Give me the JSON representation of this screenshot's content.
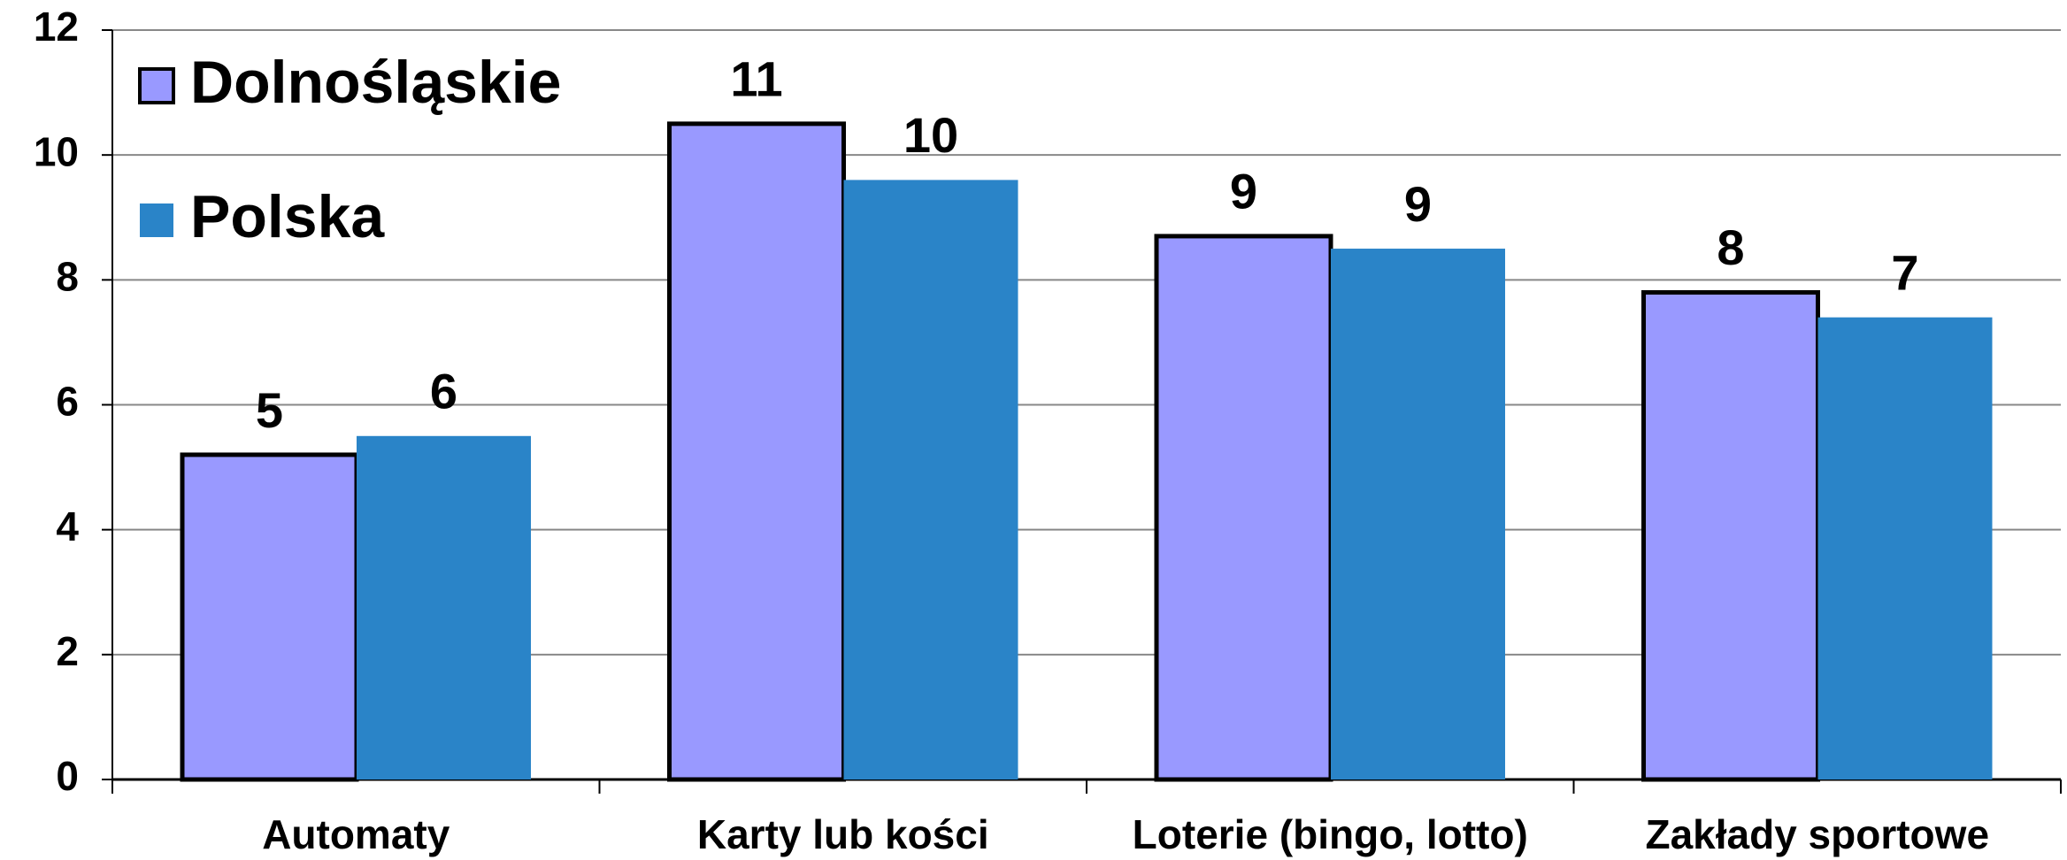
{
  "chart_data": {
    "type": "bar",
    "categories": [
      "Automaty",
      "Karty lub kości",
      "Loterie (bingo, lotto)",
      "Zakłady sportowe"
    ],
    "series": [
      {
        "name": "Dolnośląskie",
        "color": "#9999ff",
        "values": [
          5.2,
          10.5,
          8.7,
          7.8
        ],
        "value_labels": [
          "5",
          "11",
          "9",
          "8"
        ]
      },
      {
        "name": "Polska",
        "color": "#2a84c8",
        "values": [
          5.5,
          9.6,
          8.5,
          7.4
        ],
        "value_labels": [
          "6",
          "10",
          "9",
          "7"
        ]
      }
    ],
    "ylim": [
      0,
      12
    ],
    "yticks": [
      0,
      2,
      4,
      6,
      8,
      10,
      12
    ],
    "grid": true,
    "legend": "top-left"
  }
}
